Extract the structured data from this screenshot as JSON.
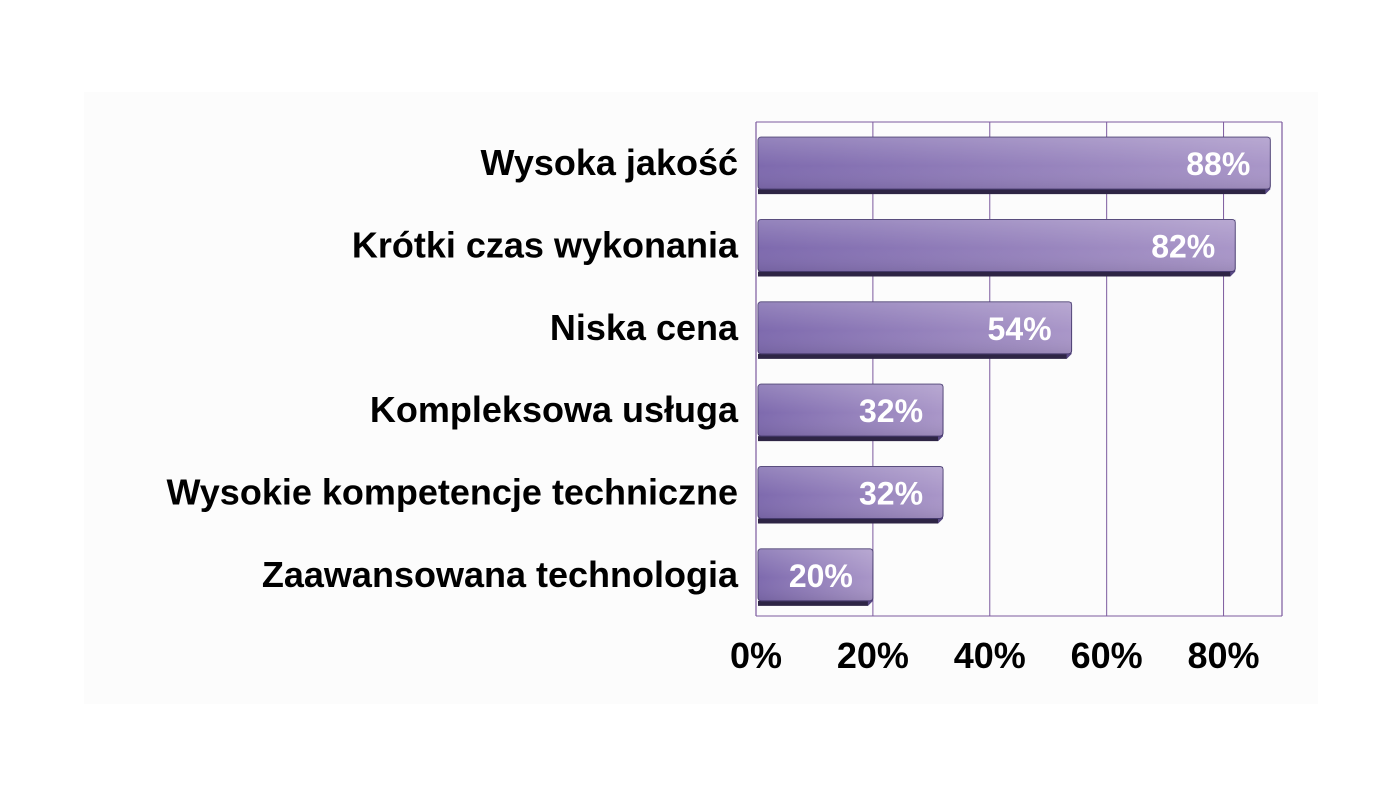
{
  "chart_data": {
    "type": "bar",
    "orientation": "horizontal",
    "categories": [
      "Wysoka jakość",
      "Krótki czas wykonania",
      "Niska cena",
      "Kompleksowa usługa",
      "Wysokie kompetencje techniczne",
      "Zaawansowana technologia"
    ],
    "values": [
      88,
      82,
      54,
      32,
      32,
      20
    ],
    "data_labels": [
      "88%",
      "82%",
      "54%",
      "32%",
      "32%",
      "20%"
    ],
    "xlim": [
      0,
      90
    ],
    "xticks": [
      0,
      20,
      40,
      60,
      80
    ],
    "xtick_labels": [
      "0%",
      "20%",
      "40%",
      "60%",
      "80%"
    ],
    "grid": true,
    "legend": "none",
    "colors": {
      "bar_light": "#a996c8",
      "bar_dark": "#7e6aae",
      "bar_shadow": "#2e2545",
      "gridline": "#7c5a9e",
      "data_label": "#ffffff"
    }
  }
}
